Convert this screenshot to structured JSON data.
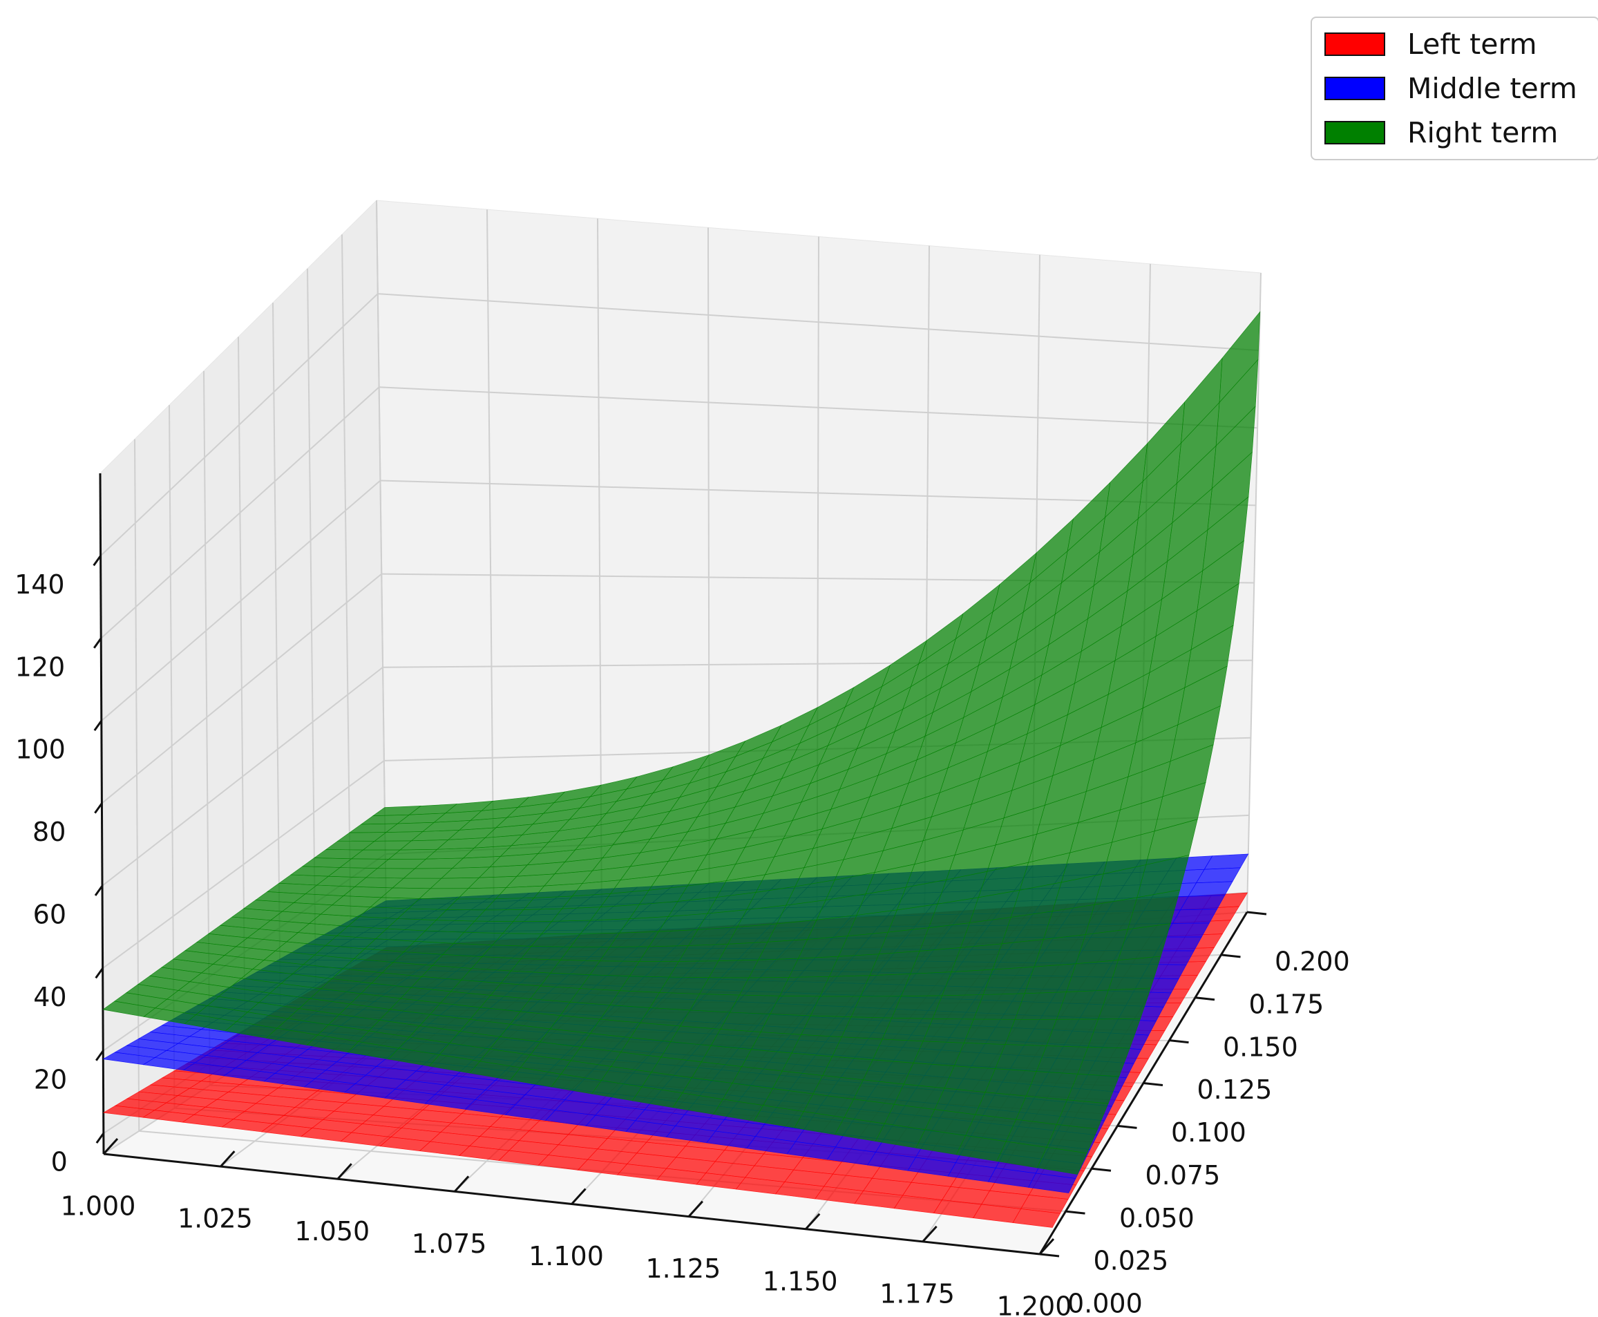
{
  "chart_data": {
    "type": "surface3d",
    "x": {
      "range": [
        1.0,
        1.2
      ],
      "ticks": [
        1.0,
        1.025,
        1.05,
        1.075,
        1.1,
        1.125,
        1.15,
        1.175,
        1.2
      ],
      "tick_labels": [
        "1.000",
        "1.025",
        "1.050",
        "1.075",
        "1.100",
        "1.125",
        "1.150",
        "1.175",
        "1.200"
      ]
    },
    "y": {
      "range": [
        0.0,
        0.2
      ],
      "ticks": [
        0.0,
        0.025,
        0.05,
        0.075,
        0.1,
        0.125,
        0.15,
        0.175,
        0.2
      ],
      "tick_labels": [
        "0.000",
        "0.025",
        "0.050",
        "0.075",
        "0.100",
        "0.125",
        "0.150",
        "0.175",
        "0.200"
      ]
    },
    "z": {
      "range": [
        -5,
        160
      ],
      "ticks": [
        0,
        20,
        40,
        60,
        80,
        100,
        120,
        140
      ],
      "tick_labels": [
        "0",
        "20",
        "40",
        "60",
        "80",
        "100",
        "120",
        "140"
      ]
    },
    "grid": true,
    "legend_position": "top-right",
    "series": [
      {
        "name": "Left term",
        "color": "#ff0000",
        "corner_values": {
          "x1.000_y0.000": 5,
          "x1.200_y0.000": 5,
          "x1.000_y0.200": 0,
          "x1.200_y0.200": 0
        },
        "profile": "planar"
      },
      {
        "name": "Middle term",
        "color": "#0000ff",
        "corner_values": {
          "x1.000_y0.000": 18,
          "x1.200_y0.000": 18,
          "x1.000_y0.200": 10,
          "x1.200_y0.200": 10
        },
        "profile": "planar"
      },
      {
        "name": "Right term",
        "color": "#008000",
        "corner_values": {
          "x1.000_y0.000": 30,
          "x1.200_y0.000": 25,
          "x1.000_y0.200": 30,
          "x1.200_y0.200": 150
        },
        "profile": "grows with x, much faster at larger y"
      }
    ]
  },
  "legend": {
    "items": [
      {
        "label": "Left term",
        "color": "#ff0000"
      },
      {
        "label": "Middle term",
        "color": "#0000ff"
      },
      {
        "label": "Right term",
        "color": "#008000"
      }
    ]
  }
}
